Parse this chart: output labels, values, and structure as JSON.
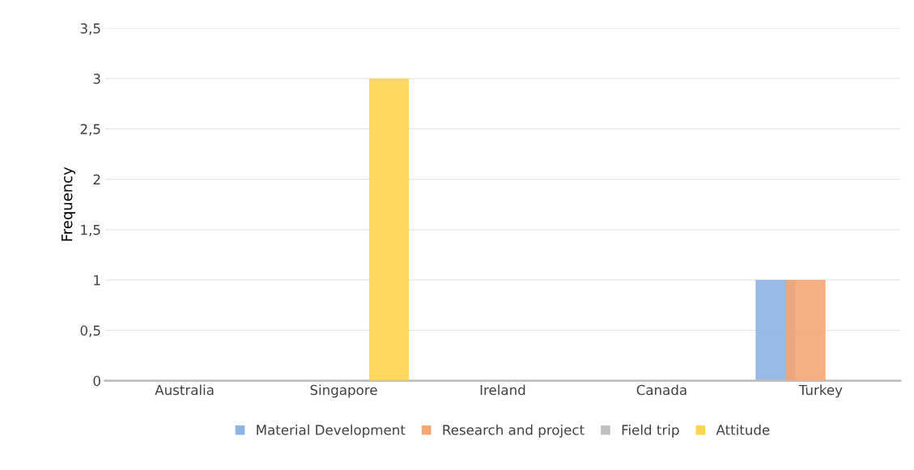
{
  "chart_data": {
    "type": "bar",
    "ylabel": "Frequency",
    "categories": [
      "Australia",
      "Singapore",
      "Ireland",
      "Canada",
      "Turkey"
    ],
    "series": [
      {
        "name": "Material Development",
        "color": "#8db4e2",
        "values": [
          0,
          0,
          0,
          0,
          1
        ]
      },
      {
        "name": "Research and project",
        "color": "#f4a672",
        "values": [
          0,
          0,
          0,
          0,
          1
        ]
      },
      {
        "name": "Field trip",
        "color": "#bfbfbf",
        "values": [
          0,
          0,
          0,
          0,
          0
        ]
      },
      {
        "name": "Attitude",
        "color": "#ffd44f",
        "values": [
          0,
          3,
          0,
          0,
          0
        ]
      }
    ],
    "ylim": [
      0,
      3.5
    ],
    "yticks": [
      {
        "value": 0,
        "label": "0"
      },
      {
        "value": 0.5,
        "label": "0,5"
      },
      {
        "value": 1,
        "label": "1"
      },
      {
        "value": 1.5,
        "label": "1,5"
      },
      {
        "value": 2,
        "label": "2"
      },
      {
        "value": 2.5,
        "label": "2,5"
      },
      {
        "value": 3,
        "label": "3"
      },
      {
        "value": 3.5,
        "label": "3,5"
      }
    ],
    "grid": "y",
    "legend": "bottom"
  }
}
